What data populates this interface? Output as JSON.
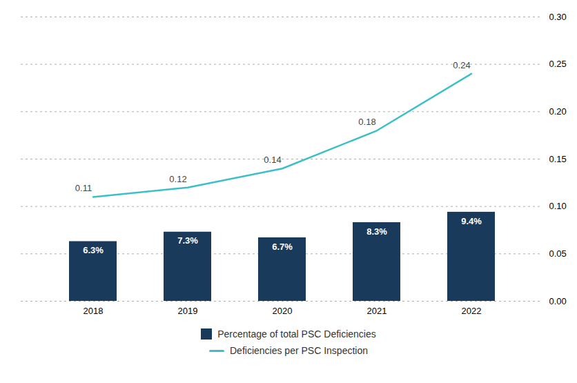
{
  "chart_data": {
    "type": "bar",
    "categories": [
      "2018",
      "2019",
      "2020",
      "2021",
      "2022"
    ],
    "series": [
      {
        "name": "Percentage of total PSC Deficiencies",
        "type": "bar",
        "color": "#1a3a5c",
        "values": [
          0.063,
          0.073,
          0.067,
          0.083,
          0.094
        ],
        "value_labels": [
          "6.3%",
          "7.3%",
          "6.7%",
          "8.3%",
          "9.4%"
        ]
      },
      {
        "name": "Deficiencies per PSC Inspection",
        "type": "line",
        "color": "#3bbfc9",
        "values": [
          0.11,
          0.12,
          0.14,
          0.18,
          0.24
        ]
      }
    ],
    "ylim": [
      0.0,
      0.3
    ],
    "yticks": [
      {
        "value": 0,
        "label": "0.00"
      },
      0.05,
      {
        "value": 0.1,
        "label": "0.10"
      },
      0.15,
      {
        "value": 0.2,
        "label": "0.20"
      },
      0.25,
      {
        "value": 0.3,
        "label": "0.30"
      }
    ],
    "grid": true,
    "legend": "bottom",
    "data_labels": true
  }
}
